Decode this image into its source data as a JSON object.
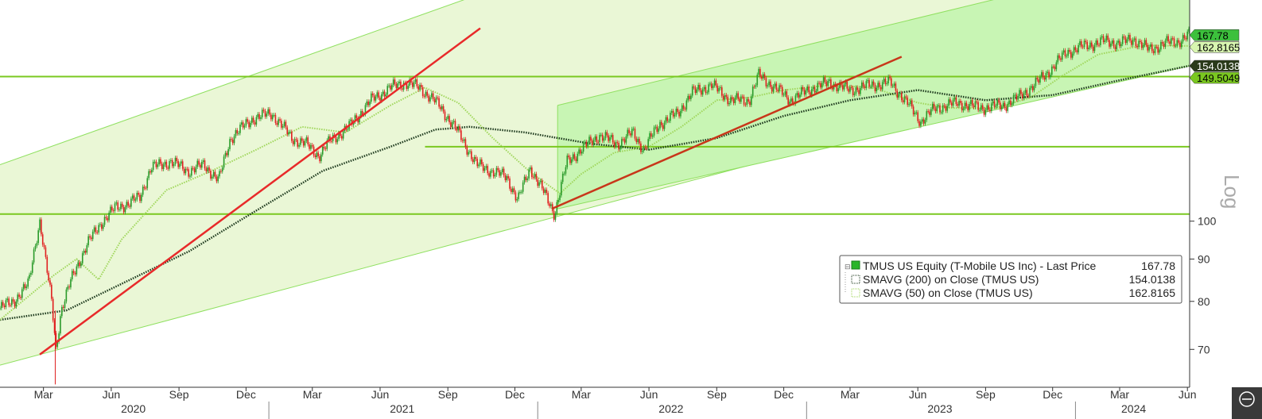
{
  "chart_data": {
    "type": "line",
    "scale": "log",
    "scale_label": "Log",
    "ylim": [
      63,
      185
    ],
    "xlim": [
      "2020-01-02",
      "2024-06-04"
    ],
    "y_ticks": [
      70,
      80,
      90,
      100
    ],
    "x_ticks": [
      {
        "date": "2020-03-01",
        "label": "Mar"
      },
      {
        "date": "2020-06-01",
        "label": "Jun"
      },
      {
        "date": "2020-09-01",
        "label": "Sep"
      },
      {
        "date": "2020-12-01",
        "label": "Dec"
      },
      {
        "date": "2021-03-01",
        "label": "Mar"
      },
      {
        "date": "2021-06-01",
        "label": "Jun"
      },
      {
        "date": "2021-09-01",
        "label": "Sep"
      },
      {
        "date": "2021-12-01",
        "label": "Dec"
      },
      {
        "date": "2022-03-01",
        "label": "Mar"
      },
      {
        "date": "2022-06-01",
        "label": "Jun"
      },
      {
        "date": "2022-09-01",
        "label": "Sep"
      },
      {
        "date": "2022-12-01",
        "label": "Dec"
      },
      {
        "date": "2023-03-01",
        "label": "Mar"
      },
      {
        "date": "2023-06-01",
        "label": "Jun"
      },
      {
        "date": "2023-09-01",
        "label": "Sep"
      },
      {
        "date": "2023-12-01",
        "label": "Dec"
      },
      {
        "date": "2024-03-01",
        "label": "Mar"
      },
      {
        "date": "2024-06-01",
        "label": "Jun"
      }
    ],
    "years": [
      {
        "label": "2020",
        "date": "2020-07-01"
      },
      {
        "label": "2021",
        "date": "2021-07-01"
      },
      {
        "label": "2022",
        "date": "2022-07-01"
      },
      {
        "label": "2023",
        "date": "2023-07-01"
      },
      {
        "label": "2024",
        "date": "2024-03-20"
      }
    ],
    "year_separators": [
      "2021-01-01",
      "2022-01-01",
      "2023-01-01",
      "2024-01-01"
    ],
    "series": [
      {
        "name": "TMUS US Equity (T-Mobile US Inc) - Last Price",
        "legend_value": "167.78",
        "style": "candles",
        "up_color": "#2a9a2a",
        "down_color": "#e02020",
        "points": [
          [
            "2020-01-02",
            78.5
          ],
          [
            "2020-01-20",
            80
          ],
          [
            "2020-02-10",
            84
          ],
          [
            "2020-02-20",
            95
          ],
          [
            "2020-02-25",
            100
          ],
          [
            "2020-03-05",
            88
          ],
          [
            "2020-03-12",
            80
          ],
          [
            "2020-03-18",
            70
          ],
          [
            "2020-03-25",
            78
          ],
          [
            "2020-04-10",
            86
          ],
          [
            "2020-04-30",
            94
          ],
          [
            "2020-05-20",
            100
          ],
          [
            "2020-06-08",
            104
          ],
          [
            "2020-06-25",
            105
          ],
          [
            "2020-07-10",
            107
          ],
          [
            "2020-07-25",
            116
          ],
          [
            "2020-08-20",
            118
          ],
          [
            "2020-09-15",
            115
          ],
          [
            "2020-10-05",
            117
          ],
          [
            "2020-10-25",
            112
          ],
          [
            "2020-11-10",
            126
          ],
          [
            "2020-12-10",
            133
          ],
          [
            "2021-01-05",
            135
          ],
          [
            "2021-02-01",
            126
          ],
          [
            "2021-02-20",
            124
          ],
          [
            "2021-03-10",
            120
          ],
          [
            "2021-03-25",
            125
          ],
          [
            "2021-04-20",
            130
          ],
          [
            "2021-05-20",
            140
          ],
          [
            "2021-06-15",
            145
          ],
          [
            "2021-07-05",
            147
          ],
          [
            "2021-07-25",
            145
          ],
          [
            "2021-08-20",
            138
          ],
          [
            "2021-09-15",
            128
          ],
          [
            "2021-10-10",
            117
          ],
          [
            "2021-10-30",
            115
          ],
          [
            "2021-11-20",
            113
          ],
          [
            "2021-12-05",
            106
          ],
          [
            "2021-12-22",
            116
          ],
          [
            "2022-01-10",
            108
          ],
          [
            "2022-01-24",
            102
          ],
          [
            "2022-02-10",
            118
          ],
          [
            "2022-03-01",
            122
          ],
          [
            "2022-03-25",
            127
          ],
          [
            "2022-04-20",
            124
          ],
          [
            "2022-05-10",
            128
          ],
          [
            "2022-05-25",
            122
          ],
          [
            "2022-06-15",
            131
          ],
          [
            "2022-07-10",
            135
          ],
          [
            "2022-07-30",
            143
          ],
          [
            "2022-08-25",
            146
          ],
          [
            "2022-09-20",
            140
          ],
          [
            "2022-10-15",
            140
          ],
          [
            "2022-10-28",
            150
          ],
          [
            "2022-11-15",
            146
          ],
          [
            "2022-12-10",
            140
          ],
          [
            "2023-01-10",
            145
          ],
          [
            "2023-02-01",
            147
          ],
          [
            "2023-03-01",
            144
          ],
          [
            "2023-03-30",
            146
          ],
          [
            "2023-04-25",
            147
          ],
          [
            "2023-05-20",
            138
          ],
          [
            "2023-06-05",
            132
          ],
          [
            "2023-06-25",
            137
          ],
          [
            "2023-07-25",
            139
          ],
          [
            "2023-08-25",
            137
          ],
          [
            "2023-09-25",
            138
          ],
          [
            "2023-10-15",
            141
          ],
          [
            "2023-11-10",
            147
          ],
          [
            "2023-11-30",
            153
          ],
          [
            "2023-12-20",
            160
          ],
          [
            "2024-01-15",
            163
          ],
          [
            "2024-02-10",
            165
          ],
          [
            "2024-03-01",
            164
          ],
          [
            "2024-03-20",
            166
          ],
          [
            "2024-04-10",
            161
          ],
          [
            "2024-05-01",
            164
          ],
          [
            "2024-05-20",
            165
          ],
          [
            "2024-06-03",
            167.78
          ]
        ]
      },
      {
        "name": "SMAVG (200)  on Close (TMUS US)",
        "legend_value": "154.0138",
        "style": "dotted",
        "color": "#1e3a1e",
        "points": [
          [
            "2020-01-02",
            76
          ],
          [
            "2020-04-01",
            78
          ],
          [
            "2020-06-15",
            84
          ],
          [
            "2020-09-15",
            92
          ],
          [
            "2020-12-15",
            103
          ],
          [
            "2021-03-15",
            115
          ],
          [
            "2021-06-15",
            123
          ],
          [
            "2021-08-15",
            129
          ],
          [
            "2021-10-01",
            130
          ],
          [
            "2021-12-15",
            128
          ],
          [
            "2022-03-15",
            124
          ],
          [
            "2022-06-01",
            122
          ],
          [
            "2022-09-01",
            126
          ],
          [
            "2022-12-01",
            134
          ],
          [
            "2023-03-01",
            140
          ],
          [
            "2023-06-01",
            144
          ],
          [
            "2023-09-01",
            140
          ],
          [
            "2023-12-01",
            142
          ],
          [
            "2024-03-01",
            148
          ],
          [
            "2024-06-03",
            154.0138
          ]
        ]
      },
      {
        "name": "SMAVG (50)  on Close (TMUS US)",
        "legend_value": "162.8165",
        "style": "dotted",
        "color": "#9fd65a",
        "points": [
          [
            "2020-01-02",
            76
          ],
          [
            "2020-03-15",
            86
          ],
          [
            "2020-04-15",
            90
          ],
          [
            "2020-05-15",
            85
          ],
          [
            "2020-06-15",
            95
          ],
          [
            "2020-08-15",
            109
          ],
          [
            "2020-10-15",
            115
          ],
          [
            "2020-12-15",
            122
          ],
          [
            "2021-02-15",
            130
          ],
          [
            "2021-04-15",
            128
          ],
          [
            "2021-06-15",
            138
          ],
          [
            "2021-08-01",
            145
          ],
          [
            "2021-09-15",
            139
          ],
          [
            "2021-11-01",
            126
          ],
          [
            "2021-12-20",
            115
          ],
          [
            "2022-01-31",
            108
          ],
          [
            "2022-03-01",
            114
          ],
          [
            "2022-04-15",
            121
          ],
          [
            "2022-06-01",
            123
          ],
          [
            "2022-07-15",
            130
          ],
          [
            "2022-09-01",
            140
          ],
          [
            "2022-10-15",
            141
          ],
          [
            "2022-12-01",
            144
          ],
          [
            "2023-02-01",
            146
          ],
          [
            "2023-04-01",
            145
          ],
          [
            "2023-06-01",
            139
          ],
          [
            "2023-07-15",
            137
          ],
          [
            "2023-09-15",
            137
          ],
          [
            "2023-11-01",
            141
          ],
          [
            "2023-12-15",
            150
          ],
          [
            "2024-02-01",
            159
          ],
          [
            "2024-04-01",
            163
          ],
          [
            "2024-06-03",
            162.8165
          ]
        ]
      }
    ],
    "horizontal_levels": [
      {
        "value": 149.5049,
        "from": "2020-01-02",
        "to": "2024-06-04",
        "label": "149.5049"
      },
      {
        "value": 123,
        "from": "2021-08-01",
        "to": "2024-06-04"
      },
      {
        "value": 102,
        "from": "2020-01-02",
        "to": "2024-06-04"
      }
    ],
    "channels": [
      {
        "upper": [
          [
            "2020-01-02",
            117
          ],
          [
            "2023-06-01",
            290
          ]
        ],
        "lower": [
          [
            "2020-01-02",
            67
          ],
          [
            "2024-06-04",
            162
          ]
        ],
        "fill": "#eaf7d6"
      },
      {
        "upper": [
          [
            "2022-01-28",
            138
          ],
          [
            "2023-09-10",
            185
          ]
        ],
        "lower": [
          [
            "2022-01-28",
            103.5
          ],
          [
            "2024-06-04",
            154
          ]
        ],
        "fill": "#c8f5b4"
      }
    ],
    "trendlines": [
      {
        "from": [
          "2020-02-25",
          69
        ],
        "to": [
          "2021-10-15",
          171
        ],
        "color": "#e82a2a"
      },
      {
        "from": [
          "2022-01-20",
          103.5
        ],
        "to": [
          "2023-05-10",
          158
        ],
        "color": "#c8371a"
      }
    ],
    "price_labels": [
      {
        "text": "167.78",
        "value": 167.78,
        "bg": "#3cc03c",
        "color": "#000000"
      },
      {
        "text": "162.8165",
        "value": 162.8165,
        "bg": "#d8f5b0",
        "color": "#000000"
      },
      {
        "text": "154.0138",
        "value": 154.0138,
        "bg": "#2a3a1a",
        "color": "#ffffff"
      },
      {
        "text": "149.5049",
        "value": 149.5049,
        "bg": "#7ac820",
        "color": "#000000"
      }
    ],
    "legend": {
      "placement": "bottom-right"
    }
  }
}
